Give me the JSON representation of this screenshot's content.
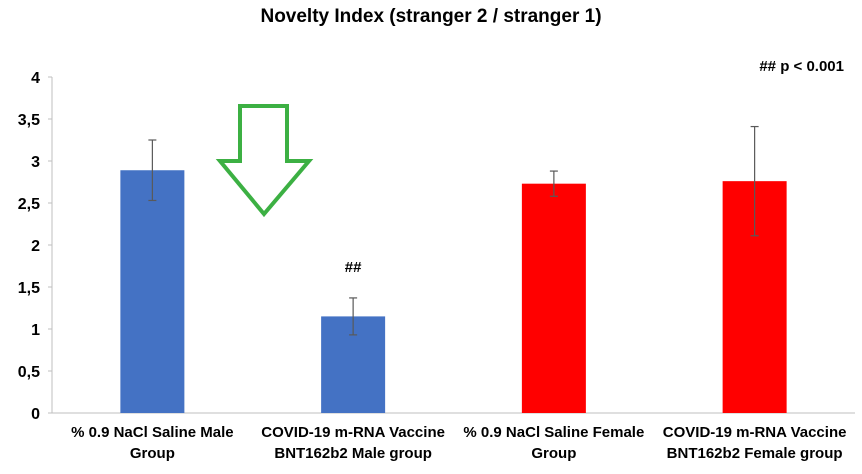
{
  "chart_data": {
    "type": "bar",
    "title": "Novelty Index (stranger 2 / stranger 1)",
    "xlabel": "",
    "ylabel": "",
    "ylim": [
      0,
      4
    ],
    "yticks": [
      "0",
      "0,5",
      "1",
      "1,5",
      "2",
      "2,5",
      "3",
      "3,5",
      "4"
    ],
    "grid": false,
    "categories": [
      [
        "% 0.9 NaCl Saline Male",
        "Group"
      ],
      [
        "COVID-19 m-RNA Vaccine",
        "BNT162b2 Male group"
      ],
      [
        "% 0.9 NaCl Saline Female",
        "Group"
      ],
      [
        "COVID-19 m-RNA Vaccine",
        "BNT162b2 Female group"
      ]
    ],
    "values": [
      2.89,
      1.15,
      2.73,
      2.76
    ],
    "errors": [
      0.36,
      0.22,
      0.15,
      0.65
    ],
    "colors": [
      "#4472C4",
      "#4472C4",
      "#FF0000",
      "#FF0000"
    ],
    "bar_annotations": [
      "",
      "##",
      "",
      ""
    ],
    "annotation": "## p < 0.001",
    "arrow_color": "#3CB043"
  }
}
